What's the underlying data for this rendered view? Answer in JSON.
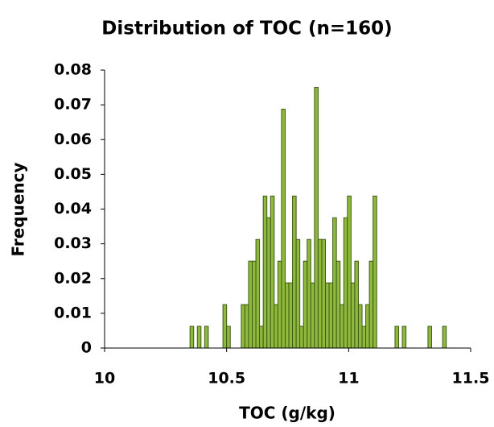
{
  "chart_data": {
    "type": "histogram",
    "title": "Distribution of TOC (n=160)",
    "xlabel": "TOC (g/kg)",
    "ylabel": "Frequency",
    "bins": [
      10.35,
      10.365,
      10.38,
      10.395,
      10.41,
      10.425,
      10.44,
      10.455,
      10.47,
      10.485,
      10.5,
      10.515,
      10.53,
      10.545,
      10.56,
      10.575,
      10.59,
      10.605,
      10.62,
      10.635,
      10.65,
      10.665,
      10.68,
      10.695,
      10.71,
      10.725,
      10.74,
      10.755,
      10.77,
      10.785,
      10.8,
      10.815,
      10.83,
      10.845,
      10.86,
      10.875,
      10.89,
      10.905,
      10.92,
      10.935,
      10.95,
      10.965,
      10.98,
      10.995,
      11.01,
      11.025,
      11.04,
      11.055,
      11.07,
      11.085,
      11.1,
      11.115,
      11.13,
      11.145,
      11.16,
      11.175,
      11.19,
      11.205,
      11.22,
      11.235,
      11.25,
      11.265,
      11.28,
      11.295,
      11.31,
      11.325,
      11.34,
      11.355,
      11.37,
      11.385,
      11.4
    ],
    "values": [
      0.00625,
      0,
      0.00625,
      0,
      0.00625,
      0,
      0,
      0,
      0,
      0.0125,
      0.00625,
      0,
      0,
      0,
      0.0125,
      0.0125,
      0.025,
      0.025,
      0.03125,
      0.00625,
      0.04375,
      0.0375,
      0.04375,
      0.0125,
      0.025,
      0.06875,
      0.01875,
      0.01875,
      0.04375,
      0.03125,
      0.00625,
      0.025,
      0.03125,
      0.01875,
      0.075,
      0.03125,
      0.03125,
      0.01875,
      0.01875,
      0.0375,
      0.025,
      0.0125,
      0.0375,
      0.04375,
      0.01875,
      0.025,
      0.0125,
      0.00625,
      0.0125,
      0.025,
      0.04375,
      0,
      0,
      0,
      0,
      0,
      0.00625,
      0,
      0.00625,
      0,
      0,
      0,
      0,
      0,
      0,
      0.00625,
      0,
      0,
      0,
      0.00625
    ],
    "color": "#8fb83e",
    "edgecolor": "#3f5c12",
    "xlim": [
      10,
      11.5
    ],
    "xticks": [
      10,
      10.5,
      11,
      11.5
    ],
    "ylim": [
      0,
      0.08
    ],
    "yticks": [
      0,
      0.01,
      0.02,
      0.03,
      0.04,
      0.05,
      0.06,
      0.07,
      0.08
    ],
    "grid": false
  }
}
